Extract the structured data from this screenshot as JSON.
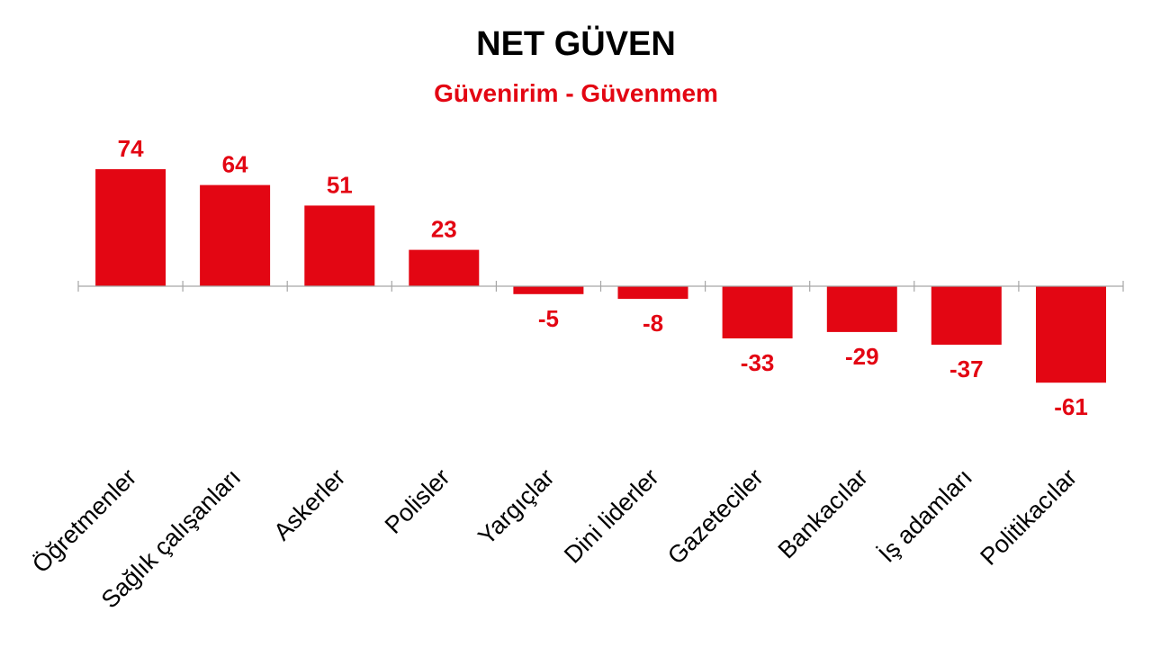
{
  "chart_data": {
    "type": "bar",
    "title": "NET GÜVEN",
    "subtitle": "Güvenirim - Güvenmem",
    "categories": [
      "Öğretmenler",
      "Sağlık çalışanları",
      "Askerler",
      "Polisler",
      "Yargıçlar",
      "Dini liderler",
      "Gazeteciler",
      "Bankacılar",
      "İş adamları",
      "Politikacılar"
    ],
    "values": [
      74,
      64,
      51,
      23,
      -5,
      -8,
      -33,
      -29,
      -37,
      -61
    ],
    "data_labels": [
      "74",
      "64",
      "51",
      "23",
      "-5",
      "-8",
      "-33",
      "-29",
      "-37",
      "-61"
    ],
    "ylim": [
      -61,
      74
    ],
    "grid": false,
    "legend": "none",
    "colors": {
      "bar": "#e30613",
      "label": "#e30613",
      "title": "#000000",
      "axis": "#a6a6a6",
      "category_text": "#000000"
    }
  }
}
